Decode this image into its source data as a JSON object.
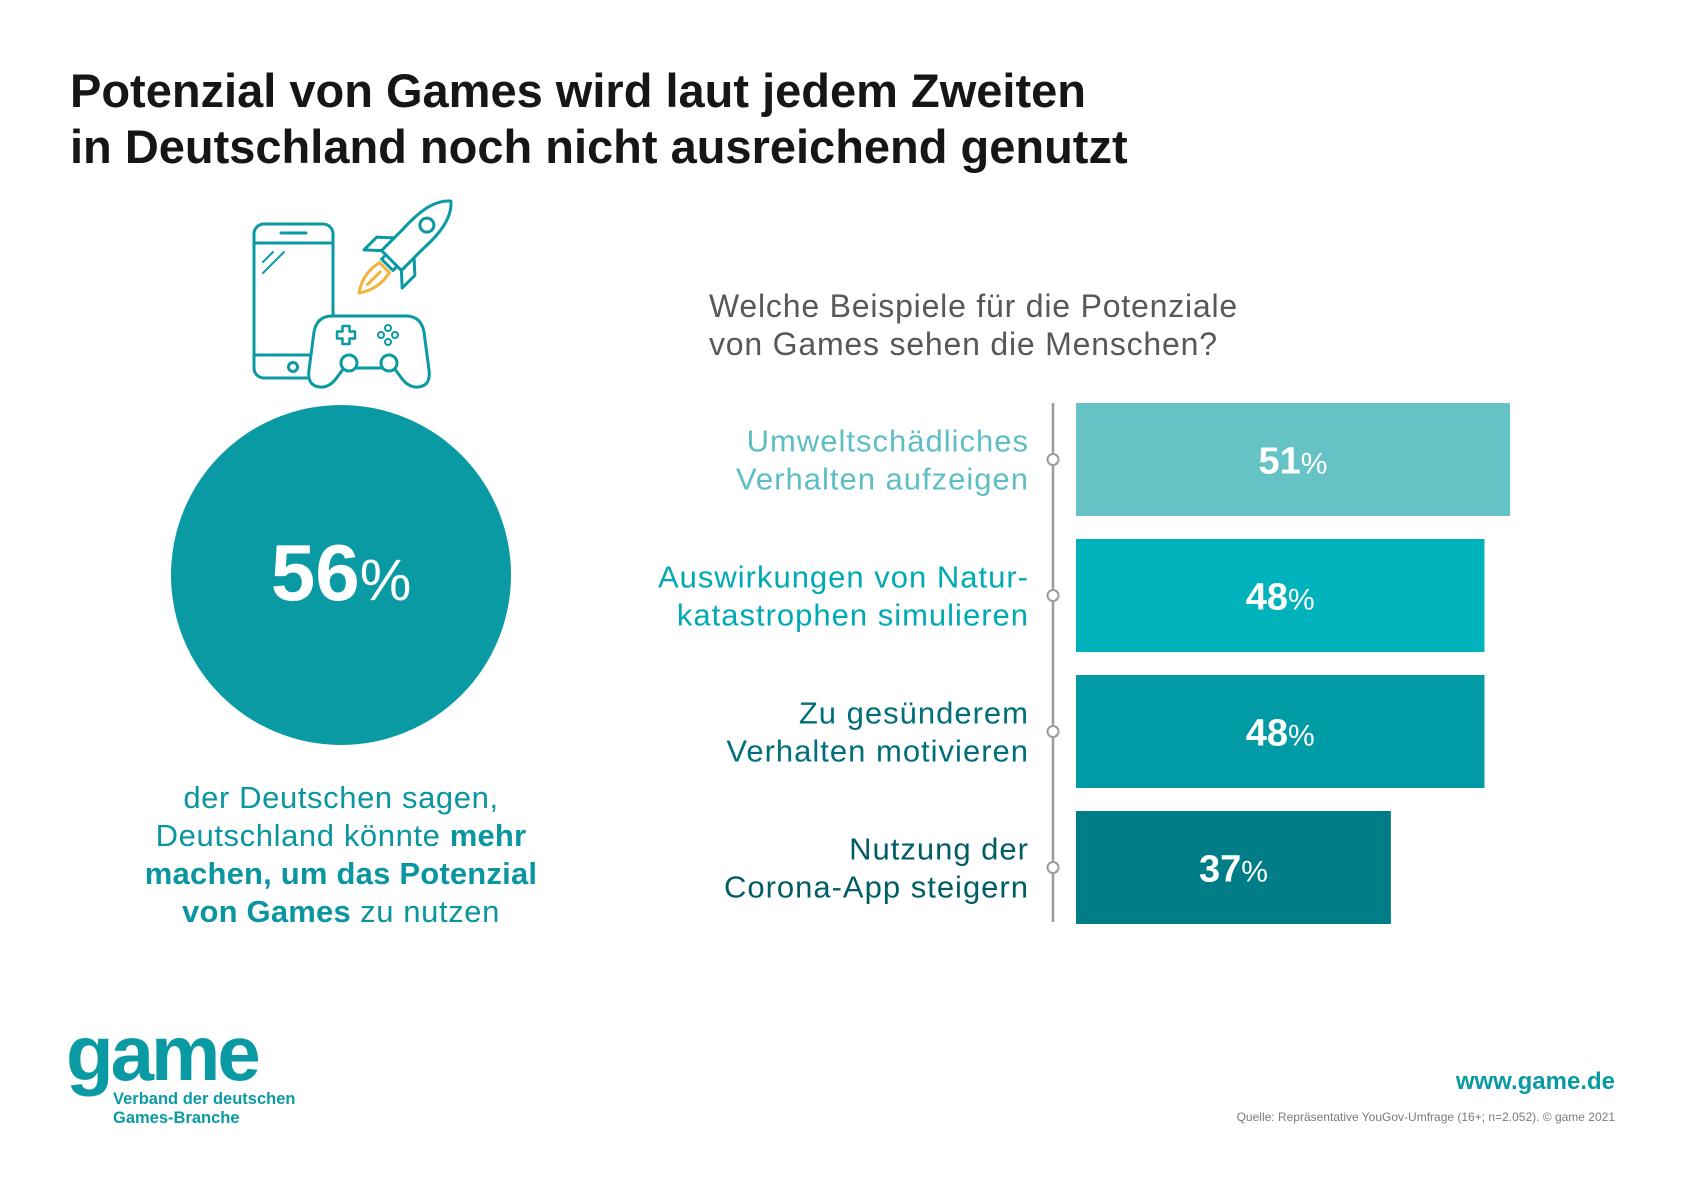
{
  "header": {
    "title_lines": [
      "Potenzial von Games wird laut jedem Zweiten",
      "in Deutschland noch nicht ausreichend genutzt"
    ]
  },
  "hero_icons": [
    "smartphone-icon",
    "rocket-icon",
    "gamepad-icon"
  ],
  "highlight": {
    "value": 56,
    "suffix": "%",
    "caption": [
      [
        "der Deutschen sagen,"
      ],
      [
        "Deutschland könnte ",
        "mehr"
      ],
      [
        "machen, um das Potenzial"
      ],
      [
        "von Games",
        " zu nutzen"
      ]
    ]
  },
  "chart_data": {
    "type": "bar",
    "orientation": "horizontal",
    "title_lines": [
      "Welche Beispiele für die Potenziale",
      "von Games sehen die Menschen?"
    ],
    "categories": [
      [
        "Umweltschädliches",
        "Verhalten aufzeigen"
      ],
      [
        "Auswirkungen von Natur-",
        "katastrophen simulieren"
      ],
      [
        "Zu gesünderem",
        "Verhalten motivieren"
      ],
      [
        "Nutzung der",
        "Corona-App steigern"
      ]
    ],
    "values": [
      51,
      48,
      48,
      37
    ],
    "value_suffix": "%",
    "bar_colors": [
      "#65c2c5",
      "#00b2bc",
      "#009ba4",
      "#007d86"
    ],
    "label_colors": [
      "#5dbfc4",
      "#00aab4",
      "#006f79",
      "#005d66"
    ],
    "grid": false,
    "legend": "none"
  },
  "footer": {
    "logo_text": "game",
    "logo_subtitle_lines": [
      "Verband der deutschen",
      "Games-Branche"
    ],
    "website": "www.game.de",
    "source": "Quelle: Repräsentative YouGov-Umfrage (16+; n=2.052). © game 2021"
  },
  "colors": {
    "brand_teal": "#0a9aa4",
    "title": "#161616",
    "question": "#56595c",
    "caption": "#0a96a0",
    "accent_yellow": "#f2b13a",
    "axis": "#9b9b9b",
    "source": "#7b7b7b"
  }
}
